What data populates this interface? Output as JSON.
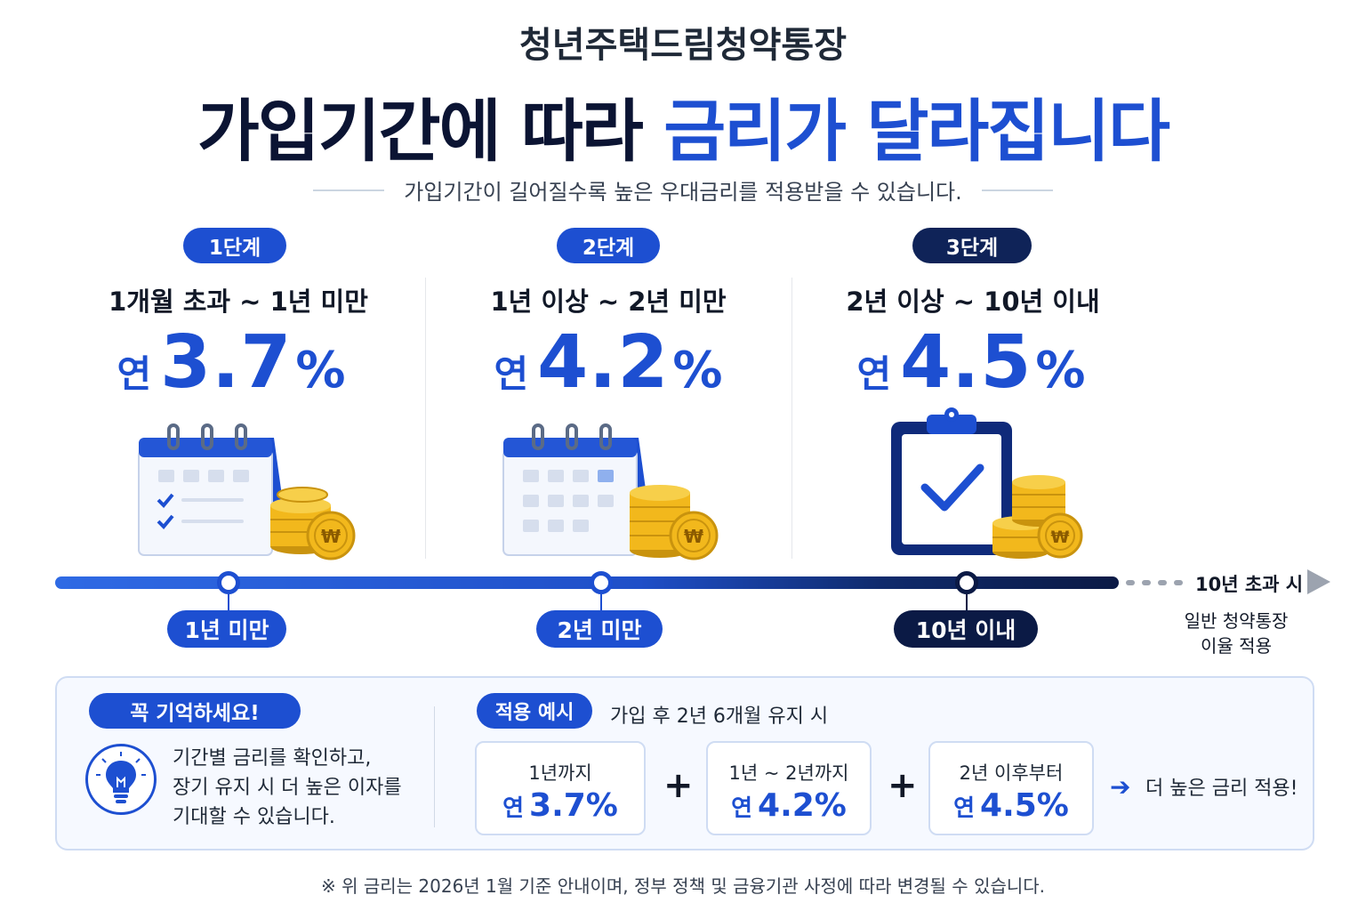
{
  "header": {
    "brand": "청년주택드림청약통장",
    "headline_part1": "가입기간에 따라",
    "headline_part2": "금리가 달라집니다",
    "subline": "가입기간이 길어질수록 높은 우대금리를 적용받을 수 있습니다."
  },
  "stages": [
    {
      "badge": "1단계",
      "range": "1개월 초과 ~ 1년 미만",
      "rate_prefix": "연",
      "rate": "3.7",
      "unit": "%",
      "icon": "calendar-checklist-icon",
      "badge_color": "#1d4fd1"
    },
    {
      "badge": "2단계",
      "range": "1년 이상 ~ 2년 미만",
      "rate_prefix": "연",
      "rate": "4.2",
      "unit": "%",
      "icon": "calendar-icon",
      "badge_color": "#1d4fd1"
    },
    {
      "badge": "3단계",
      "range": "2년 이상 ~ 10년 이내",
      "rate_prefix": "연",
      "rate": "4.5",
      "unit": "%",
      "icon": "clipboard-check-icon",
      "badge_color": "#0f2358"
    }
  ],
  "timeline": {
    "markers": [
      "1년 미만",
      "2년 미만",
      "10년 이내"
    ],
    "after_label": "10년 초과 시",
    "after_note_line1": "일반 청약통장",
    "after_note_line2": "이율 적용"
  },
  "reminder": {
    "badge": "꼭 기억하세요!",
    "icon": "lightbulb-icon",
    "line1": "기간별 금리를 확인하고,",
    "line2": "장기 유지 시 더 높은 이자를",
    "line3": "기대할 수 있습니다."
  },
  "example": {
    "badge": "적용 예시",
    "condition": "가입 후 2년 6개월 유지 시",
    "boxes": [
      {
        "label": "1년까지",
        "prefix": "연",
        "rate": "3.7%"
      },
      {
        "label": "1년 ~ 2년까지",
        "prefix": "연",
        "rate": "4.2%"
      },
      {
        "label": "2년 이후부터",
        "prefix": "연",
        "rate": "4.5%"
      }
    ],
    "plus": "+",
    "result_arrow": "➔",
    "result": "더 높은 금리 적용!"
  },
  "footnote": "※ 위 금리는 2026년 1월 기준 안내이며, 정부 정책 및 금융기관 사정에 따라 변경될 수 있습니다.",
  "colors": {
    "accent": "#1d4fd1",
    "navy": "#0f2358",
    "coin": "#f2b81c"
  }
}
